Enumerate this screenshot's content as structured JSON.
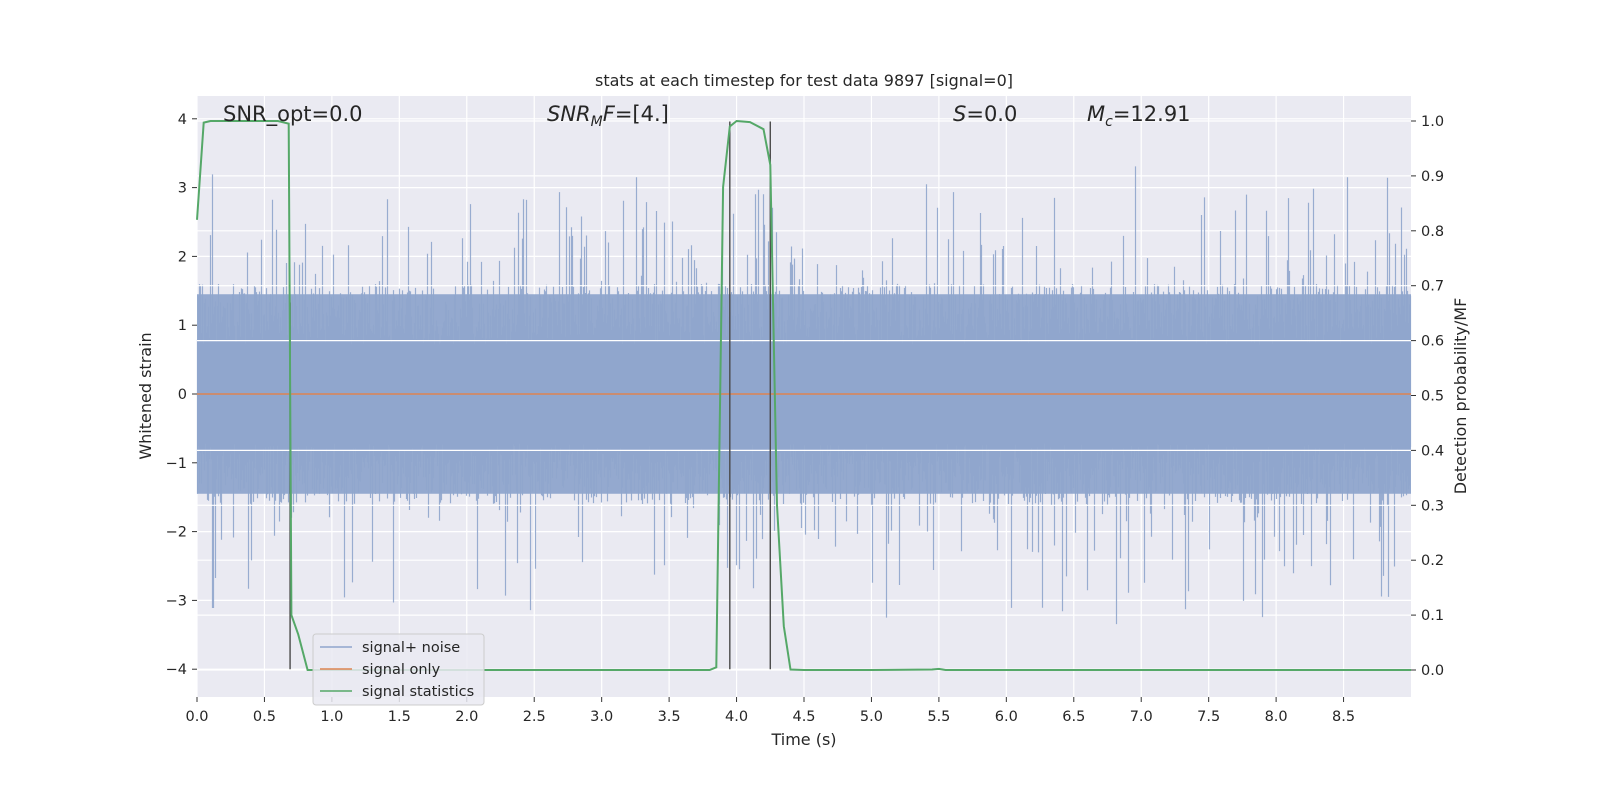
{
  "chart_data": {
    "type": "line",
    "title": "stats at each timestep for test data 9897 [signal=0]",
    "xlabel": "Time (s)",
    "ylabel_left": "Whitened strain",
    "ylabel_right": "Detection probability/MF",
    "xlim": [
      0.0,
      9.0
    ],
    "ylim_left": [
      -4.4,
      4.4
    ],
    "ylim_right": [
      -0.05,
      1.05
    ],
    "x_ticks": [
      "0.0",
      "0.5",
      "1.0",
      "1.5",
      "2.0",
      "2.5",
      "3.0",
      "3.5",
      "4.0",
      "4.5",
      "5.0",
      "5.5",
      "6.0",
      "6.5",
      "7.0",
      "7.5",
      "8.0",
      "8.5"
    ],
    "y_left_ticks": [
      "4",
      "3",
      "2",
      "1",
      "0",
      "−1",
      "−2",
      "−3",
      "−4"
    ],
    "y_right_ticks": [
      "1.0",
      "0.9",
      "0.8",
      "0.7",
      "0.6",
      "0.5",
      "0.4",
      "0.3",
      "0.2",
      "0.1",
      "0.0"
    ],
    "grid": true,
    "annotations": {
      "snr_opt": "SNR_opt=0.0",
      "snr_mf_main": "SNR",
      "snr_mf_sub": "M",
      "snr_mf_mid": "F",
      "snr_mf_value": "=[4.]",
      "s_label": "S",
      "s_value": "=0.0",
      "mc_label": "M",
      "mc_sub": "c",
      "mc_value": "=12.91"
    },
    "legend": {
      "placement": "lower-left",
      "entries": [
        "signal+ noise",
        "signal only",
        "signal statistics"
      ]
    },
    "colors": {
      "signal_noise": "#8fa5cc",
      "signal_only": "#dd8452",
      "signal_statistics": "#55a868",
      "vlines": "#4a4a4a",
      "background": "#eaeaf2"
    },
    "signal_only": {
      "x": [
        0.0,
        9.0
      ],
      "y": [
        0.0,
        0.0
      ]
    },
    "signal_noise": {
      "description_type": "noise",
      "band": [
        -1.6,
        1.6
      ],
      "peaks": [
        -3.5,
        3.6
      ]
    },
    "signal_statistics": {
      "x": [
        0.0,
        0.05,
        0.1,
        0.2,
        0.3,
        0.4,
        0.5,
        0.6,
        0.68,
        0.7,
        0.75,
        0.82,
        0.9,
        1.0,
        2.0,
        3.0,
        3.5,
        3.8,
        3.85,
        3.9,
        3.95,
        4.0,
        4.1,
        4.2,
        4.25,
        4.3,
        4.35,
        4.4,
        4.5,
        5.0,
        5.45,
        5.5,
        5.55,
        6.0,
        7.0,
        8.0,
        9.0
      ],
      "y": [
        0.82,
        0.997,
        1.0,
        1.0,
        1.0,
        1.0,
        1.0,
        1.0,
        0.995,
        0.1,
        0.065,
        0.0,
        0.0,
        0.0,
        0.0,
        0.0,
        0.0,
        0.0,
        0.005,
        0.88,
        0.99,
        1.0,
        0.998,
        0.985,
        0.92,
        0.3,
        0.08,
        0.001,
        0.0,
        0.0,
        0.001,
        0.002,
        0.0,
        0.0,
        0.0,
        0.0,
        0.0
      ]
    },
    "vertical_lines": [
      {
        "x": 0.69,
        "y_top": 1.33,
        "y_bottom": -4.0
      },
      {
        "x": 3.95,
        "y_top": 3.96,
        "y_bottom": -4.0
      },
      {
        "x": 4.25,
        "y_top": 3.96,
        "y_bottom": -4.0
      }
    ]
  }
}
